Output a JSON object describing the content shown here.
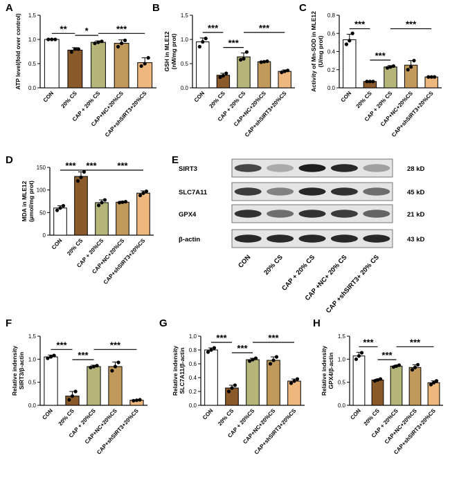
{
  "bar_colors": [
    "#ffffff",
    "#8b5a2b",
    "#b5b57a",
    "#c19a5b",
    "#eeb77e"
  ],
  "chart_data": [
    {
      "type": "bar",
      "panel": "A",
      "categories": [
        "CON",
        "20% CS",
        "CAP + 20% CS",
        "CAP+NC+20%CS",
        "CAP+shSIRT3+20%CS"
      ],
      "values": [
        1.0,
        0.78,
        0.94,
        0.92,
        0.52
      ],
      "errors": [
        0.01,
        0.05,
        0.03,
        0.07,
        0.1
      ],
      "points": [
        [
          1.0,
          1.0,
          1.0
        ],
        [
          0.74,
          0.8,
          0.8
        ],
        [
          0.92,
          0.94,
          0.96
        ],
        [
          0.85,
          0.92,
          0.98
        ],
        [
          0.45,
          0.5,
          0.62
        ]
      ],
      "ylabel": "ATP level(fold over control)",
      "ylim": [
        0,
        1.5
      ],
      "yticks": [
        "0.0",
        "0.5",
        "1.0",
        "1.5"
      ],
      "sig": [
        {
          "from": 0,
          "to": 1,
          "label": "**"
        },
        {
          "from": 1,
          "to": 2,
          "label": "*"
        },
        {
          "from": 2,
          "to": 4,
          "label": "***"
        }
      ]
    },
    {
      "type": "bar",
      "panel": "B",
      "categories": [
        "CON",
        "20% CS",
        "CAP + 20% CS",
        "CAP+NC+20%CS",
        "CAP+shSIRT3+20%CS"
      ],
      "values": [
        0.95,
        0.26,
        0.64,
        0.54,
        0.34
      ],
      "errors": [
        0.08,
        0.04,
        0.08,
        0.01,
        0.03
      ],
      "points": [
        [
          0.85,
          0.95,
          1.02
        ],
        [
          0.22,
          0.25,
          0.3
        ],
        [
          0.58,
          0.6,
          0.74
        ],
        [
          0.53,
          0.54,
          0.55
        ],
        [
          0.32,
          0.34,
          0.36
        ]
      ],
      "ylabel": "GSH in MLE12 (nM/mg prot)",
      "ylim": [
        0,
        1.5
      ],
      "yticks": [
        "0.0",
        "0.5",
        "1.0",
        "1.5"
      ],
      "sig": [
        {
          "from": 0,
          "to": 1,
          "label": "***"
        },
        {
          "from": 1,
          "to": 2,
          "label": "***"
        },
        {
          "from": 2,
          "to": 4,
          "label": "***"
        }
      ]
    },
    {
      "type": "bar",
      "panel": "C",
      "categories": [
        "CON",
        "20% CS",
        "CAP + 20% CS",
        "CAP+NC+20%CS",
        "CAP+shSIRT3+20%CS"
      ],
      "values": [
        0.53,
        0.07,
        0.23,
        0.25,
        0.12
      ],
      "errors": [
        0.06,
        0.005,
        0.015,
        0.05,
        0.005
      ],
      "points": [
        [
          0.48,
          0.52,
          0.6
        ],
        [
          0.07,
          0.07,
          0.07
        ],
        [
          0.22,
          0.23,
          0.24
        ],
        [
          0.2,
          0.23,
          0.3
        ],
        [
          0.12,
          0.12,
          0.12
        ]
      ],
      "ylabel": "Activity of Mn-SOD in MLE12 (U/mg prot)",
      "ylim": [
        0,
        0.8
      ],
      "yticks": [
        "0.0",
        "0.2",
        "0.4",
        "0.6",
        "0.8"
      ],
      "sig": [
        {
          "from": 0,
          "to": 1,
          "label": "***"
        },
        {
          "from": 1,
          "to": 2,
          "label": "***"
        },
        {
          "from": 2,
          "to": 4,
          "label": "***"
        }
      ]
    },
    {
      "type": "bar",
      "panel": "D",
      "categories": [
        "CON",
        "20% CS",
        "CAP + 20%CS",
        "CAP+NC+20%CS",
        "CAP+shSIRT3+20%CS"
      ],
      "values": [
        60,
        130,
        72,
        73,
        93
      ],
      "errors": [
        5,
        10,
        6,
        2,
        5
      ],
      "points": [
        [
          55,
          60,
          65
        ],
        [
          120,
          128,
          140
        ],
        [
          66,
          72,
          78
        ],
        [
          72,
          73,
          74
        ],
        [
          88,
          93,
          97
        ]
      ],
      "ylabel": "MDA in MLE12 (µmol/mg prot)",
      "ylim": [
        0,
        150
      ],
      "yticks": [
        "0",
        "50",
        "100",
        "150"
      ],
      "sig": [
        {
          "from": 0,
          "to": 1,
          "label": "***"
        },
        {
          "from": 1,
          "to": 2,
          "label": "***"
        },
        {
          "from": 2,
          "to": 4,
          "label": "***"
        }
      ]
    },
    {
      "type": "bar",
      "panel": "F",
      "categories": [
        "CON",
        "20% CS",
        "CAP + 20%CS",
        "CAP+NC+20%CS",
        "CAP+shSIRT3+20%CS"
      ],
      "values": [
        1.05,
        0.2,
        0.84,
        0.84,
        0.11
      ],
      "errors": [
        0.04,
        0.1,
        0.03,
        0.1,
        0.01
      ],
      "points": [
        [
          1.02,
          1.05,
          1.08
        ],
        [
          0.12,
          0.2,
          0.3
        ],
        [
          0.82,
          0.84,
          0.86
        ],
        [
          0.75,
          0.84,
          0.93
        ],
        [
          0.1,
          0.11,
          0.12
        ]
      ],
      "ylabel": "Relative indensity SIRT3/β-actin",
      "ylim": [
        0,
        1.5
      ],
      "yticks": [
        "0.0",
        "0.5",
        "1.0",
        "1.5"
      ],
      "sig": [
        {
          "from": 0,
          "to": 1,
          "label": "***"
        },
        {
          "from": 1,
          "to": 2,
          "label": "***"
        },
        {
          "from": 2,
          "to": 4,
          "label": "***"
        }
      ]
    },
    {
      "type": "bar",
      "panel": "G",
      "categories": [
        "CON",
        "20% CS",
        "CAP + 20%CS",
        "CAP+NC+20%CS",
        "CAP+shSIRT3+20%CS"
      ],
      "values": [
        0.8,
        0.25,
        0.66,
        0.65,
        0.35
      ],
      "errors": [
        0.03,
        0.04,
        0.02,
        0.05,
        0.03
      ],
      "points": [
        [
          0.77,
          0.8,
          0.83
        ],
        [
          0.2,
          0.25,
          0.29
        ],
        [
          0.64,
          0.66,
          0.68
        ],
        [
          0.6,
          0.65,
          0.7
        ],
        [
          0.32,
          0.35,
          0.38
        ]
      ],
      "ylabel": "Relative indensity SLC7A11/β-actin",
      "ylim": [
        0,
        1.0
      ],
      "yticks": [
        "0.0",
        "0.2",
        "0.4",
        "0.6",
        "0.8",
        "1.0"
      ],
      "sig": [
        {
          "from": 0,
          "to": 1,
          "label": "***"
        },
        {
          "from": 1,
          "to": 2,
          "label": "***"
        },
        {
          "from": 2,
          "to": 4,
          "label": "***"
        }
      ]
    },
    {
      "type": "bar",
      "panel": "H",
      "categories": [
        "CON",
        "20% CS",
        "CAP + 20%CS",
        "CAP+NC+20%CS",
        "CAP+shSIRT3+20%CS"
      ],
      "values": [
        1.07,
        0.55,
        0.85,
        0.82,
        0.49
      ],
      "errors": [
        0.08,
        0.02,
        0.02,
        0.06,
        0.04
      ],
      "points": [
        [
          1.0,
          1.07,
          1.14
        ],
        [
          0.53,
          0.55,
          0.57
        ],
        [
          0.83,
          0.85,
          0.87
        ],
        [
          0.77,
          0.82,
          0.88
        ],
        [
          0.45,
          0.49,
          0.53
        ]
      ],
      "ylabel": "Relative indensity GPX4/β-actin",
      "ylim": [
        0,
        1.5
      ],
      "yticks": [
        "0.0",
        "0.5",
        "1.0",
        "1.5"
      ],
      "sig": [
        {
          "from": 0,
          "to": 1,
          "label": "***"
        },
        {
          "from": 1,
          "to": 2,
          "label": "***"
        },
        {
          "from": 2,
          "to": 4,
          "label": "***"
        }
      ]
    }
  ],
  "blot": {
    "panel": "E",
    "lanes": [
      "CON",
      "20% CS",
      "CAP + 20% CS",
      "CAP +NC+ 20% CS",
      "CAP +shSIRT3+ 20% CS"
    ],
    "proteins": [
      {
        "name": "SIRT3",
        "size": "28 kD",
        "intensity": [
          0.75,
          0.25,
          0.95,
          0.9,
          0.3
        ]
      },
      {
        "name": "SLC7A11",
        "size": "45 kD",
        "intensity": [
          0.8,
          0.45,
          0.9,
          0.85,
          0.55
        ]
      },
      {
        "name": "GPX4",
        "size": "21 kD",
        "intensity": [
          0.85,
          0.55,
          0.85,
          0.8,
          0.6
        ]
      },
      {
        "name": "β-actin",
        "size": "43 kD",
        "intensity": [
          0.9,
          0.9,
          0.9,
          0.9,
          0.9
        ]
      }
    ]
  }
}
